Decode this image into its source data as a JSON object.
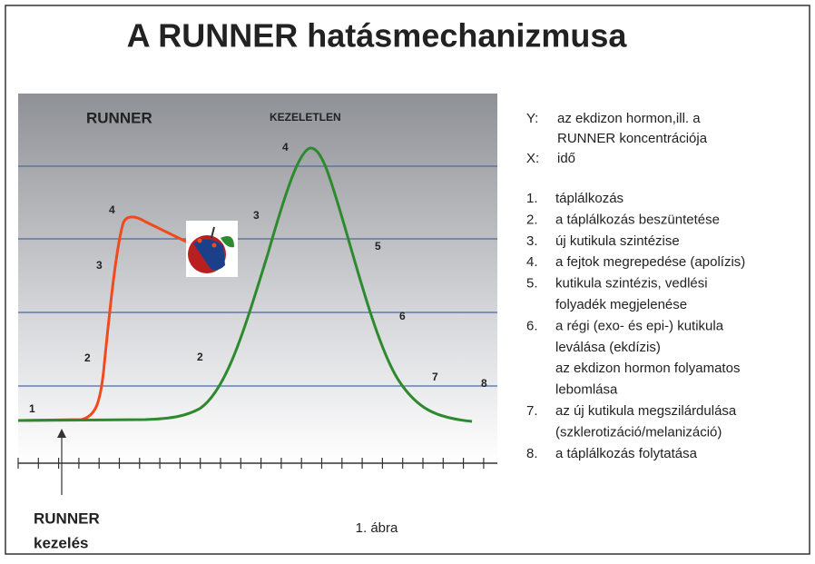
{
  "title": "A RUNNER hatásmechanizmusa",
  "diagram": {
    "runner_label": "RUNNER",
    "untreated_label": "KEZELETLEN",
    "runner_stages": [
      "1",
      "2",
      "3",
      "4"
    ],
    "untreated_stages": [
      "2",
      "3",
      "4",
      "5",
      "6",
      "7",
      "8"
    ],
    "treatment_label": [
      "RUNNER",
      "kezelés"
    ]
  },
  "legend": {
    "y_key": "Y:",
    "y_text": [
      "az ekdizon hormon,ill. a",
      "RUNNER koncentrációja"
    ],
    "x_key": "X:",
    "x_text": "idő"
  },
  "steps": [
    {
      "number": "1.",
      "lines": [
        "táplálkozás"
      ]
    },
    {
      "number": "2.",
      "lines": [
        "a táplálkozás beszüntetése"
      ]
    },
    {
      "number": "3.",
      "lines": [
        "új kutikula szintézise"
      ]
    },
    {
      "number": "4.",
      "lines": [
        "a fejtok megrepedése (apolízis)"
      ]
    },
    {
      "number": "5.",
      "lines": [
        "kutikula szintézis, vedlési",
        "folyadék megjelenése"
      ]
    },
    {
      "number": "6.",
      "lines": [
        "a régi (exo- és epi-) kutikula",
        "leválása (ekdízis)",
        "az ekdizon hormon folyamatos",
        "lebomlása"
      ]
    },
    {
      "number": "7.",
      "lines": [
        "az új kutikula megszilárdulása",
        "(szklerotizáció/melanizáció)"
      ]
    },
    {
      "number": "8.",
      "lines": [
        "a táplálkozás folytatása"
      ]
    }
  ],
  "caption": "1. ábra"
}
